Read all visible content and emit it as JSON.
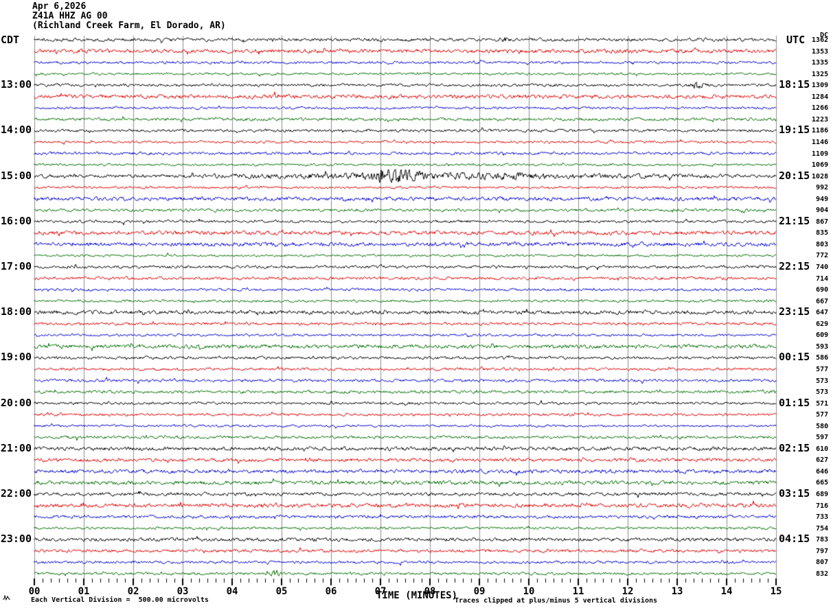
{
  "header": {
    "date": "Apr 6,2026",
    "station": "Z41A HHZ AG 00",
    "location": "(Richland Creek Farm, El Dorado, AR)",
    "left_tz": "CDT",
    "right_tz": "UTC",
    "dc_label": "DC"
  },
  "footer": {
    "xaxis_title": "TIME (MINUTES)",
    "scale_note": "Each Vertical Division =  500.00 microvolts",
    "clip_note": "Traces clipped at plus/minus 5 vertical divisions"
  },
  "chart_data": {
    "type": "line",
    "subtype": "seismogram-helicorder",
    "title": "Z41A HHZ AG 00 helicorder, Apr 6,2026",
    "xlabel": "TIME (MINUTES)",
    "x_range_minutes": [
      0,
      15
    ],
    "x_tick_labels": [
      "00",
      "01",
      "02",
      "03",
      "04",
      "05",
      "06",
      "07",
      "08",
      "09",
      "10",
      "11",
      "12",
      "13",
      "14",
      "15"
    ],
    "minor_ticks_per_minute": 6,
    "rows": 48,
    "minutes_per_row": 15,
    "trace_colors": [
      "#000000",
      "#dd0000",
      "#0000cc",
      "#006e00"
    ],
    "grid_color": "#8c8c8c",
    "left_time_labels": [
      {
        "row": 4,
        "label": "13:00"
      },
      {
        "row": 8,
        "label": "14:00"
      },
      {
        "row": 12,
        "label": "15:00"
      },
      {
        "row": 16,
        "label": "16:00"
      },
      {
        "row": 20,
        "label": "17:00"
      },
      {
        "row": 24,
        "label": "18:00"
      },
      {
        "row": 28,
        "label": "19:00"
      },
      {
        "row": 32,
        "label": "20:00"
      },
      {
        "row": 36,
        "label": "21:00"
      },
      {
        "row": 40,
        "label": "22:00"
      },
      {
        "row": 44,
        "label": "23:00"
      }
    ],
    "right_time_labels": [
      {
        "row": 4,
        "label": "18:15"
      },
      {
        "row": 8,
        "label": "19:15"
      },
      {
        "row": 12,
        "label": "20:15"
      },
      {
        "row": 16,
        "label": "21:15"
      },
      {
        "row": 20,
        "label": "22:15"
      },
      {
        "row": 24,
        "label": "23:15"
      },
      {
        "row": 28,
        "label": "00:15"
      },
      {
        "row": 32,
        "label": "01:15"
      },
      {
        "row": 36,
        "label": "02:15"
      },
      {
        "row": 40,
        "label": "03:15"
      },
      {
        "row": 44,
        "label": "04:15"
      }
    ],
    "dc_values": [
      1362,
      1353,
      1335,
      1325,
      1309,
      1284,
      1266,
      1223,
      1186,
      1146,
      1109,
      1069,
      1028,
      992,
      949,
      904,
      867,
      835,
      803,
      772,
      740,
      714,
      690,
      667,
      647,
      629,
      609,
      593,
      586,
      577,
      573,
      573,
      571,
      577,
      580,
      597,
      610,
      627,
      646,
      665,
      689,
      716,
      733,
      754,
      783,
      797,
      807,
      832
    ],
    "events": [
      {
        "row": 0,
        "peak_min": 9.5,
        "sigma_min": 0.06,
        "amp_mult": 1.4
      },
      {
        "row": 4,
        "peak_min": 13.42,
        "sigma_min": 0.09,
        "amp_mult": 2.4
      },
      {
        "row": 12,
        "peak_min": 5.8,
        "sigma_min": 1.5,
        "amp_mult": 0.8
      },
      {
        "row": 12,
        "peak_min": 7.25,
        "sigma_min": 0.3,
        "amp_mult": 4.2
      },
      {
        "row": 12,
        "peak_min": 8.9,
        "sigma_min": 1.4,
        "amp_mult": 0.9
      },
      {
        "row": 12,
        "peak_min": 11.5,
        "sigma_min": 2.2,
        "amp_mult": 0.35
      },
      {
        "row": 47,
        "peak_min": 4.88,
        "sigma_min": 0.08,
        "amp_mult": 2.0
      }
    ],
    "clip_divisions": 5,
    "microvolts_per_division": "500.00"
  }
}
